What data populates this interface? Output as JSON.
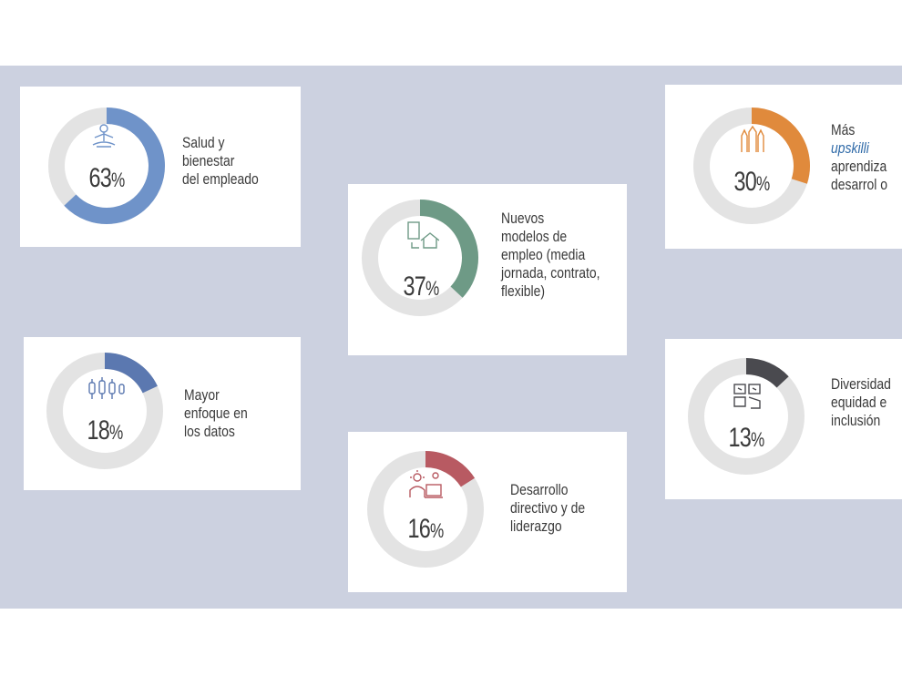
{
  "chart_data": [
    {
      "type": "pie",
      "value": 63,
      "display": "63%",
      "label_lines": [
        "Salud y",
        "bienestar",
        "del empleado"
      ],
      "color": "#6f93c9"
    },
    {
      "type": "pie",
      "value": 37,
      "display": "37%",
      "label_lines": [
        "Nuevos",
        "modelos de",
        "empleo (media",
        "jornada, contrato,",
        "flexible)"
      ],
      "color": "#6e9a86"
    },
    {
      "type": "pie",
      "value": 30,
      "display": "30%",
      "label_lines": [
        "Más",
        "upskilli",
        "aprendiza",
        "desarrol o"
      ],
      "color": "#e08a3c"
    },
    {
      "type": "pie",
      "value": 18,
      "display": "18%",
      "label_lines": [
        "Mayor",
        "enfoque en",
        "los datos"
      ],
      "color": "#5b78b0"
    },
    {
      "type": "pie",
      "value": 16,
      "display": "16%",
      "label_lines": [
        "Desarrollo",
        "directivo y de",
        "liderazgo"
      ],
      "color": "#b85a62"
    },
    {
      "type": "pie",
      "value": 13,
      "display": "13%",
      "label_lines": [
        "Diversidad",
        "equidad e",
        "inclusión"
      ],
      "color": "#4a4a4f"
    }
  ],
  "ring_track_color": "#e3e3e3",
  "icons": [
    "meditation-icon",
    "home-office-icon",
    "hands-up-icon",
    "data-icon",
    "leadership-icon",
    "diversity-icon"
  ]
}
